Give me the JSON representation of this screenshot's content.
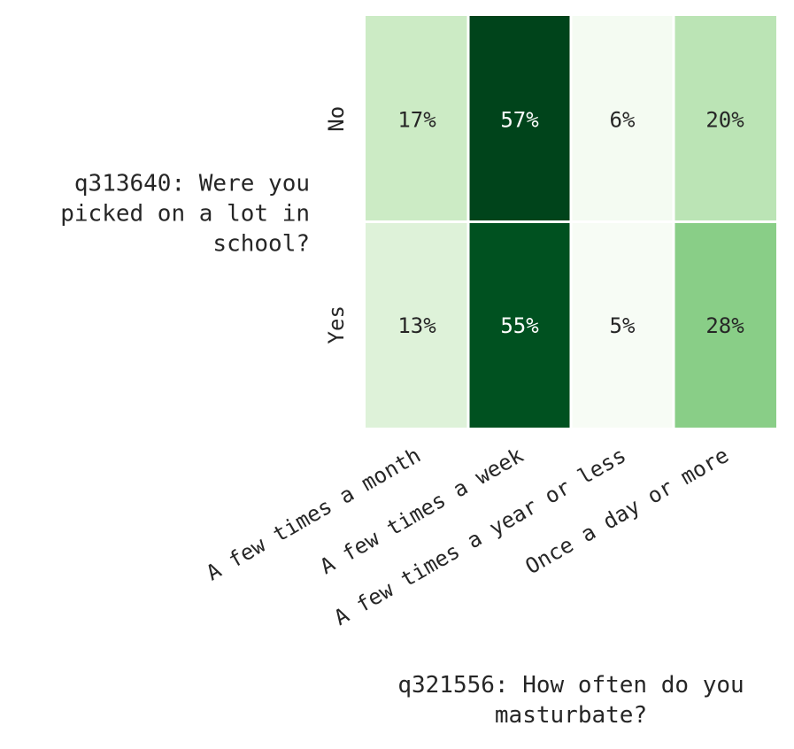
{
  "chart_data": {
    "type": "heatmap",
    "title": "",
    "xlabel": "q321556: How often do you masturbate?",
    "ylabel": "q313640: Were you picked on a lot in school?",
    "x_categories": [
      "A few times a month",
      "A few times a week",
      "A few times a year or less",
      "Once a day or more"
    ],
    "y_categories": [
      "No",
      "Yes"
    ],
    "values": [
      [
        17,
        57,
        6,
        20
      ],
      [
        13,
        55,
        5,
        28
      ]
    ],
    "cell_labels": [
      [
        "17%",
        "57%",
        "6%",
        "20%"
      ],
      [
        "13%",
        "55%",
        "5%",
        "28%"
      ]
    ],
    "value_unit": "%",
    "colormap": "Greens",
    "color_range": [
      5,
      57
    ],
    "colorbar": false,
    "grid": false
  }
}
